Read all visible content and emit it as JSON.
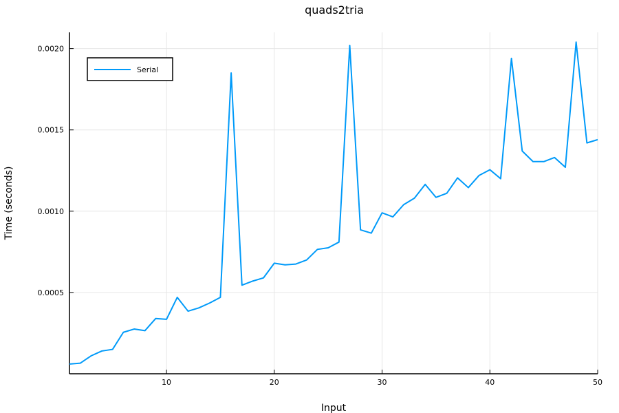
{
  "chart_data": {
    "type": "line",
    "title": "quads2tria",
    "xlabel": "Input",
    "ylabel": "Time (seconds)",
    "xlim": [
      1,
      50
    ],
    "ylim": [
      0.0,
      0.0021
    ],
    "x_ticks": [
      10,
      20,
      30,
      40,
      50
    ],
    "x_tick_labels": [
      "10",
      "20",
      "30",
      "40",
      "50"
    ],
    "y_ticks": [
      0.0005,
      0.001,
      0.0015,
      0.002
    ],
    "y_tick_labels": [
      "0.0005",
      "0.0010",
      "0.0015",
      "0.0020"
    ],
    "grid": true,
    "legend": {
      "position": "top-left"
    },
    "series": [
      {
        "name": "Serial",
        "color": "#009af9",
        "x": [
          1,
          2,
          3,
          4,
          5,
          6,
          7,
          8,
          9,
          10,
          11,
          12,
          13,
          14,
          15,
          16,
          17,
          18,
          19,
          20,
          21,
          22,
          23,
          24,
          25,
          26,
          27,
          28,
          29,
          30,
          31,
          32,
          33,
          34,
          35,
          36,
          37,
          38,
          39,
          40,
          41,
          42,
          43,
          44,
          45,
          46,
          47,
          48,
          49,
          50
        ],
        "y": [
          6e-05,
          6.5e-05,
          0.00011,
          0.00014,
          0.00015,
          0.000255,
          0.000275,
          0.000265,
          0.00034,
          0.000335,
          0.00047,
          0.000385,
          0.000405,
          0.000435,
          0.00047,
          0.00185,
          0.000545,
          0.00057,
          0.00059,
          0.00068,
          0.00067,
          0.000675,
          0.0007,
          0.000765,
          0.000775,
          0.00081,
          0.00202,
          0.000885,
          0.000865,
          0.00099,
          0.000965,
          0.00104,
          0.00108,
          0.001165,
          0.001085,
          0.00111,
          0.001205,
          0.001145,
          0.00122,
          0.001255,
          0.0012,
          0.00194,
          0.00137,
          0.001305,
          0.001305,
          0.00133,
          0.00127,
          0.00204,
          0.00142,
          0.00144
        ]
      }
    ]
  }
}
